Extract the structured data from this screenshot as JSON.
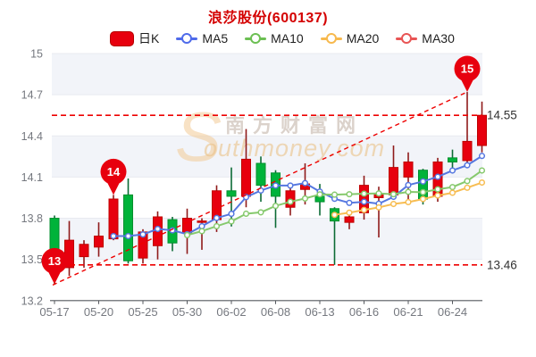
{
  "title": "浪莎股份(600137)",
  "legend": [
    {
      "id": "day-k",
      "label": "日K",
      "color": "#e7000e",
      "type": "box"
    },
    {
      "id": "ma5",
      "label": "MA5",
      "color": "#4f6bea",
      "type": "line"
    },
    {
      "id": "ma10",
      "label": "MA10",
      "color": "#6cbf53",
      "type": "line"
    },
    {
      "id": "ma20",
      "label": "MA20",
      "color": "#f7b94e",
      "type": "line"
    },
    {
      "id": "ma30",
      "label": "MA30",
      "color": "#e85555",
      "type": "line"
    }
  ],
  "watermark": {
    "swoosh": "S",
    "cn": "南方财富网",
    "en": "outhmoney.com"
  },
  "colors": {
    "title": "#d40000",
    "up_fill": "#e7000e",
    "up_stroke": "#bf0000",
    "up_wick": "#8f1a1a",
    "down_fill": "#00b33a",
    "down_stroke": "#008f2d",
    "down_wick": "#0c6b35",
    "ma5": "#5577e0",
    "ma10": "#86c96d",
    "ma20": "#f7bd52",
    "ma30": "#e96060",
    "band": "#f2f4f9",
    "grid": "#e8eaf0",
    "axis_line": "#55585e",
    "tick_label": "#75787f",
    "dash_line": "#ee0000",
    "annotation_label": "#333333",
    "pin_fill": "#e7000e",
    "pin_text": "#ffffff"
  },
  "chart_data": {
    "type": "candlestick",
    "title": "浪莎股份(600137)",
    "ylim": [
      13.2,
      15
    ],
    "grid": true,
    "legend_position": "top",
    "y_tick_labels": [
      "15",
      "14.7",
      "14.4",
      "14.1",
      "13.8",
      "13.5",
      "13.2"
    ],
    "x_tick_labels": [
      "05-17",
      "05-20",
      "05-25",
      "05-30",
      "06-02",
      "06-08",
      "06-13",
      "06-16",
      "06-21",
      "06-24"
    ],
    "x_tick_indices": [
      0,
      3,
      6,
      9,
      12,
      15,
      18,
      21,
      24,
      27
    ],
    "dates": [
      "05-17",
      "05-18",
      "05-19",
      "05-20",
      "05-23",
      "05-24",
      "05-25",
      "05-26",
      "05-27",
      "05-30",
      "05-31",
      "06-01",
      "06-02",
      "06-06",
      "06-07",
      "06-08",
      "06-09",
      "06-10",
      "06-13",
      "06-14",
      "06-15",
      "06-16",
      "06-17",
      "06-20",
      "06-21",
      "06-22",
      "06-23",
      "06-24",
      "06-27",
      "06-28"
    ],
    "ohlc": [
      [
        13.8,
        13.82,
        13.32,
        13.49
      ],
      [
        13.44,
        13.78,
        13.38,
        13.64
      ],
      [
        13.52,
        13.64,
        13.44,
        13.61
      ],
      [
        13.59,
        13.77,
        13.52,
        13.67
      ],
      [
        13.65,
        13.97,
        13.64,
        13.94
      ],
      [
        13.97,
        14.09,
        13.47,
        13.49
      ],
      [
        13.51,
        13.72,
        13.47,
        13.7
      ],
      [
        13.6,
        13.85,
        13.5,
        13.81
      ],
      [
        13.79,
        13.81,
        13.56,
        13.62
      ],
      [
        13.69,
        13.87,
        13.54,
        13.8
      ],
      [
        13.77,
        13.8,
        13.57,
        13.78
      ],
      [
        13.79,
        14.04,
        13.7,
        14.0
      ],
      [
        14.0,
        14.17,
        13.74,
        13.96
      ],
      [
        13.96,
        14.45,
        13.88,
        14.23
      ],
      [
        14.2,
        14.25,
        13.92,
        14.04
      ],
      [
        14.13,
        14.15,
        13.73,
        13.96
      ],
      [
        13.88,
        14.03,
        13.82,
        14.0
      ],
      [
        14.01,
        14.2,
        13.9,
        14.05
      ],
      [
        13.96,
        14.05,
        13.82,
        13.92
      ],
      [
        13.87,
        13.88,
        13.46,
        13.78
      ],
      [
        13.77,
        13.84,
        13.72,
        13.81
      ],
      [
        13.84,
        14.11,
        13.79,
        14.04
      ],
      [
        13.95,
        14.03,
        13.66,
        13.98
      ],
      [
        13.97,
        14.33,
        13.94,
        14.17
      ],
      [
        14.1,
        14.28,
        13.9,
        14.21
      ],
      [
        14.15,
        14.16,
        13.9,
        13.94
      ],
      [
        13.96,
        14.24,
        13.92,
        14.21
      ],
      [
        14.24,
        14.3,
        14.15,
        14.21
      ],
      [
        14.22,
        14.72,
        14.17,
        14.36
      ],
      [
        14.33,
        14.65,
        14.28,
        14.55
      ]
    ],
    "moving_averages": [
      {
        "name": "MA5",
        "window": 5
      },
      {
        "name": "MA10",
        "window": 10
      },
      {
        "name": "MA20",
        "window": 20
      },
      {
        "name": "MA30",
        "window": 30
      }
    ],
    "annotations": {
      "h_lines": [
        {
          "value": 14.55,
          "label": "14.55"
        },
        {
          "value": 13.46,
          "label": "13.46"
        }
      ],
      "trend_line": {
        "from_date": "05-17",
        "from_value": 13.32,
        "to_date": "06-27",
        "to_value": 14.72
      },
      "pins": [
        {
          "label": "13",
          "date": "05-17",
          "value": 13.32
        },
        {
          "label": "14",
          "date": "05-23",
          "value": 13.97
        },
        {
          "label": "15",
          "date": "06-27",
          "value": 14.72
        }
      ]
    }
  }
}
